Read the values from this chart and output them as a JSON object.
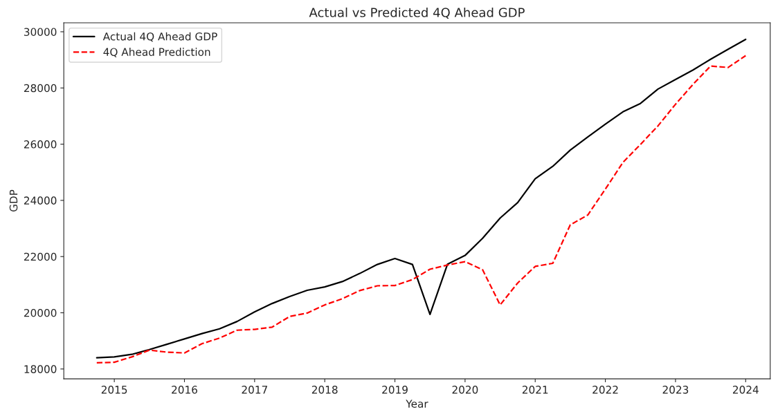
{
  "chart_data": {
    "type": "line",
    "title": "Actual vs Predicted 4Q Ahead GDP",
    "xlabel": "Year",
    "ylabel": "GDP",
    "x": [
      2014.75,
      2015,
      2015.25,
      2015.5,
      2015.75,
      2016,
      2016.25,
      2016.5,
      2016.75,
      2017,
      2017.25,
      2017.5,
      2017.75,
      2018,
      2018.25,
      2018.5,
      2018.75,
      2019,
      2019.25,
      2019.5,
      2019.75,
      2020,
      2020.25,
      2020.5,
      2020.75,
      2021,
      2021.25,
      2021.5,
      2021.75,
      2022,
      2022.25,
      2022.5,
      2022.75,
      2023,
      2023.25,
      2023.5,
      2023.75,
      2024
    ],
    "series": [
      {
        "name": "Actual 4Q Ahead GDP",
        "color": "#000000",
        "line_style": "solid",
        "values": [
          18400,
          18430,
          18520,
          18690,
          18880,
          19070,
          19260,
          19430,
          19690,
          20030,
          20330,
          20580,
          20800,
          20920,
          21110,
          21400,
          21720,
          21930,
          21720,
          19940,
          21730,
          22040,
          22650,
          23370,
          23920,
          24770,
          25210,
          25790,
          26260,
          26710,
          27150,
          27450,
          27960,
          28300,
          28640,
          29020,
          29380,
          29730
        ]
      },
      {
        "name": "4Q Ahead Prediction",
        "color": "#ff0000",
        "line_style": "dashed",
        "values": [
          18220,
          18240,
          18430,
          18670,
          18600,
          18570,
          18900,
          19100,
          19380,
          19410,
          19490,
          19870,
          19990,
          20280,
          20500,
          20790,
          20960,
          20970,
          21180,
          21550,
          21700,
          21820,
          21530,
          20280,
          21060,
          21650,
          21760,
          23130,
          23480,
          24400,
          25350,
          25990,
          26650,
          27420,
          28130,
          28780,
          28730,
          29150
        ]
      }
    ],
    "xlim": [
      2014.28,
      2024.35
    ],
    "xticks": [
      2015,
      2016,
      2017,
      2018,
      2019,
      2020,
      2021,
      2022,
      2023,
      2024
    ],
    "ylim": [
      17650,
      30320
    ],
    "yticks": [
      18000,
      20000,
      22000,
      24000,
      26000,
      28000,
      30000
    ],
    "legend": "top left",
    "grid": false,
    "marker": "none"
  }
}
